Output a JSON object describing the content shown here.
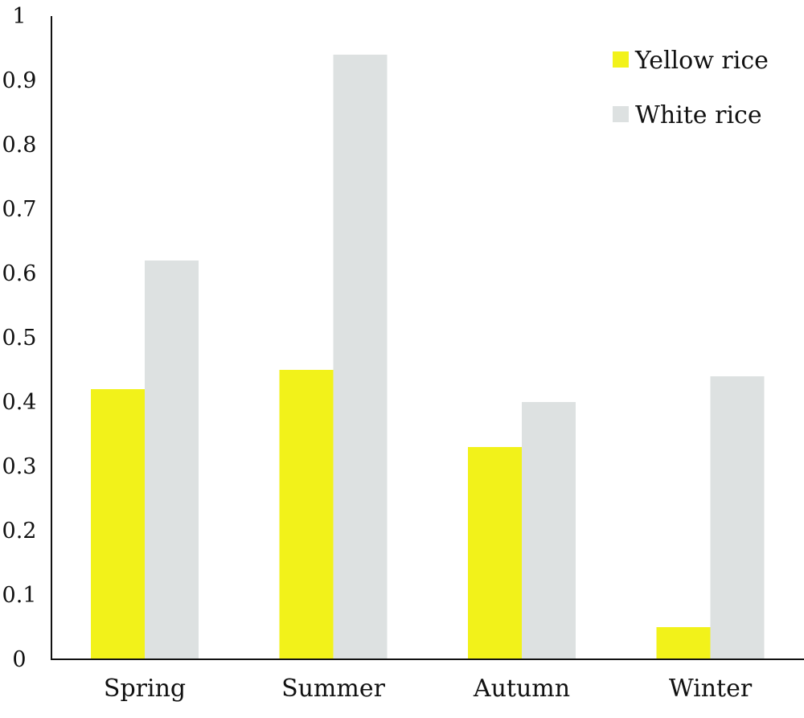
{
  "chart_data": {
    "type": "bar",
    "categories": [
      "Spring",
      "Summer",
      "Autumn",
      "Winter"
    ],
    "series": [
      {
        "name": "Yellow rice",
        "color": "#f2f21a",
        "values": [
          0.42,
          0.45,
          0.33,
          0.05
        ]
      },
      {
        "name": "White rice",
        "color": "#dde1e1",
        "values": [
          0.62,
          0.94,
          0.4,
          0.44
        ]
      }
    ],
    "title": "",
    "xlabel": "",
    "ylabel": "",
    "ylim": [
      0,
      1
    ],
    "yticks": [
      "0",
      "0.1",
      "0.2",
      "0.3",
      "0.4",
      "0.5",
      "0.6",
      "0.7",
      "0.8",
      "0.9",
      "1"
    ],
    "grid": false,
    "legend_position": "top-right"
  }
}
